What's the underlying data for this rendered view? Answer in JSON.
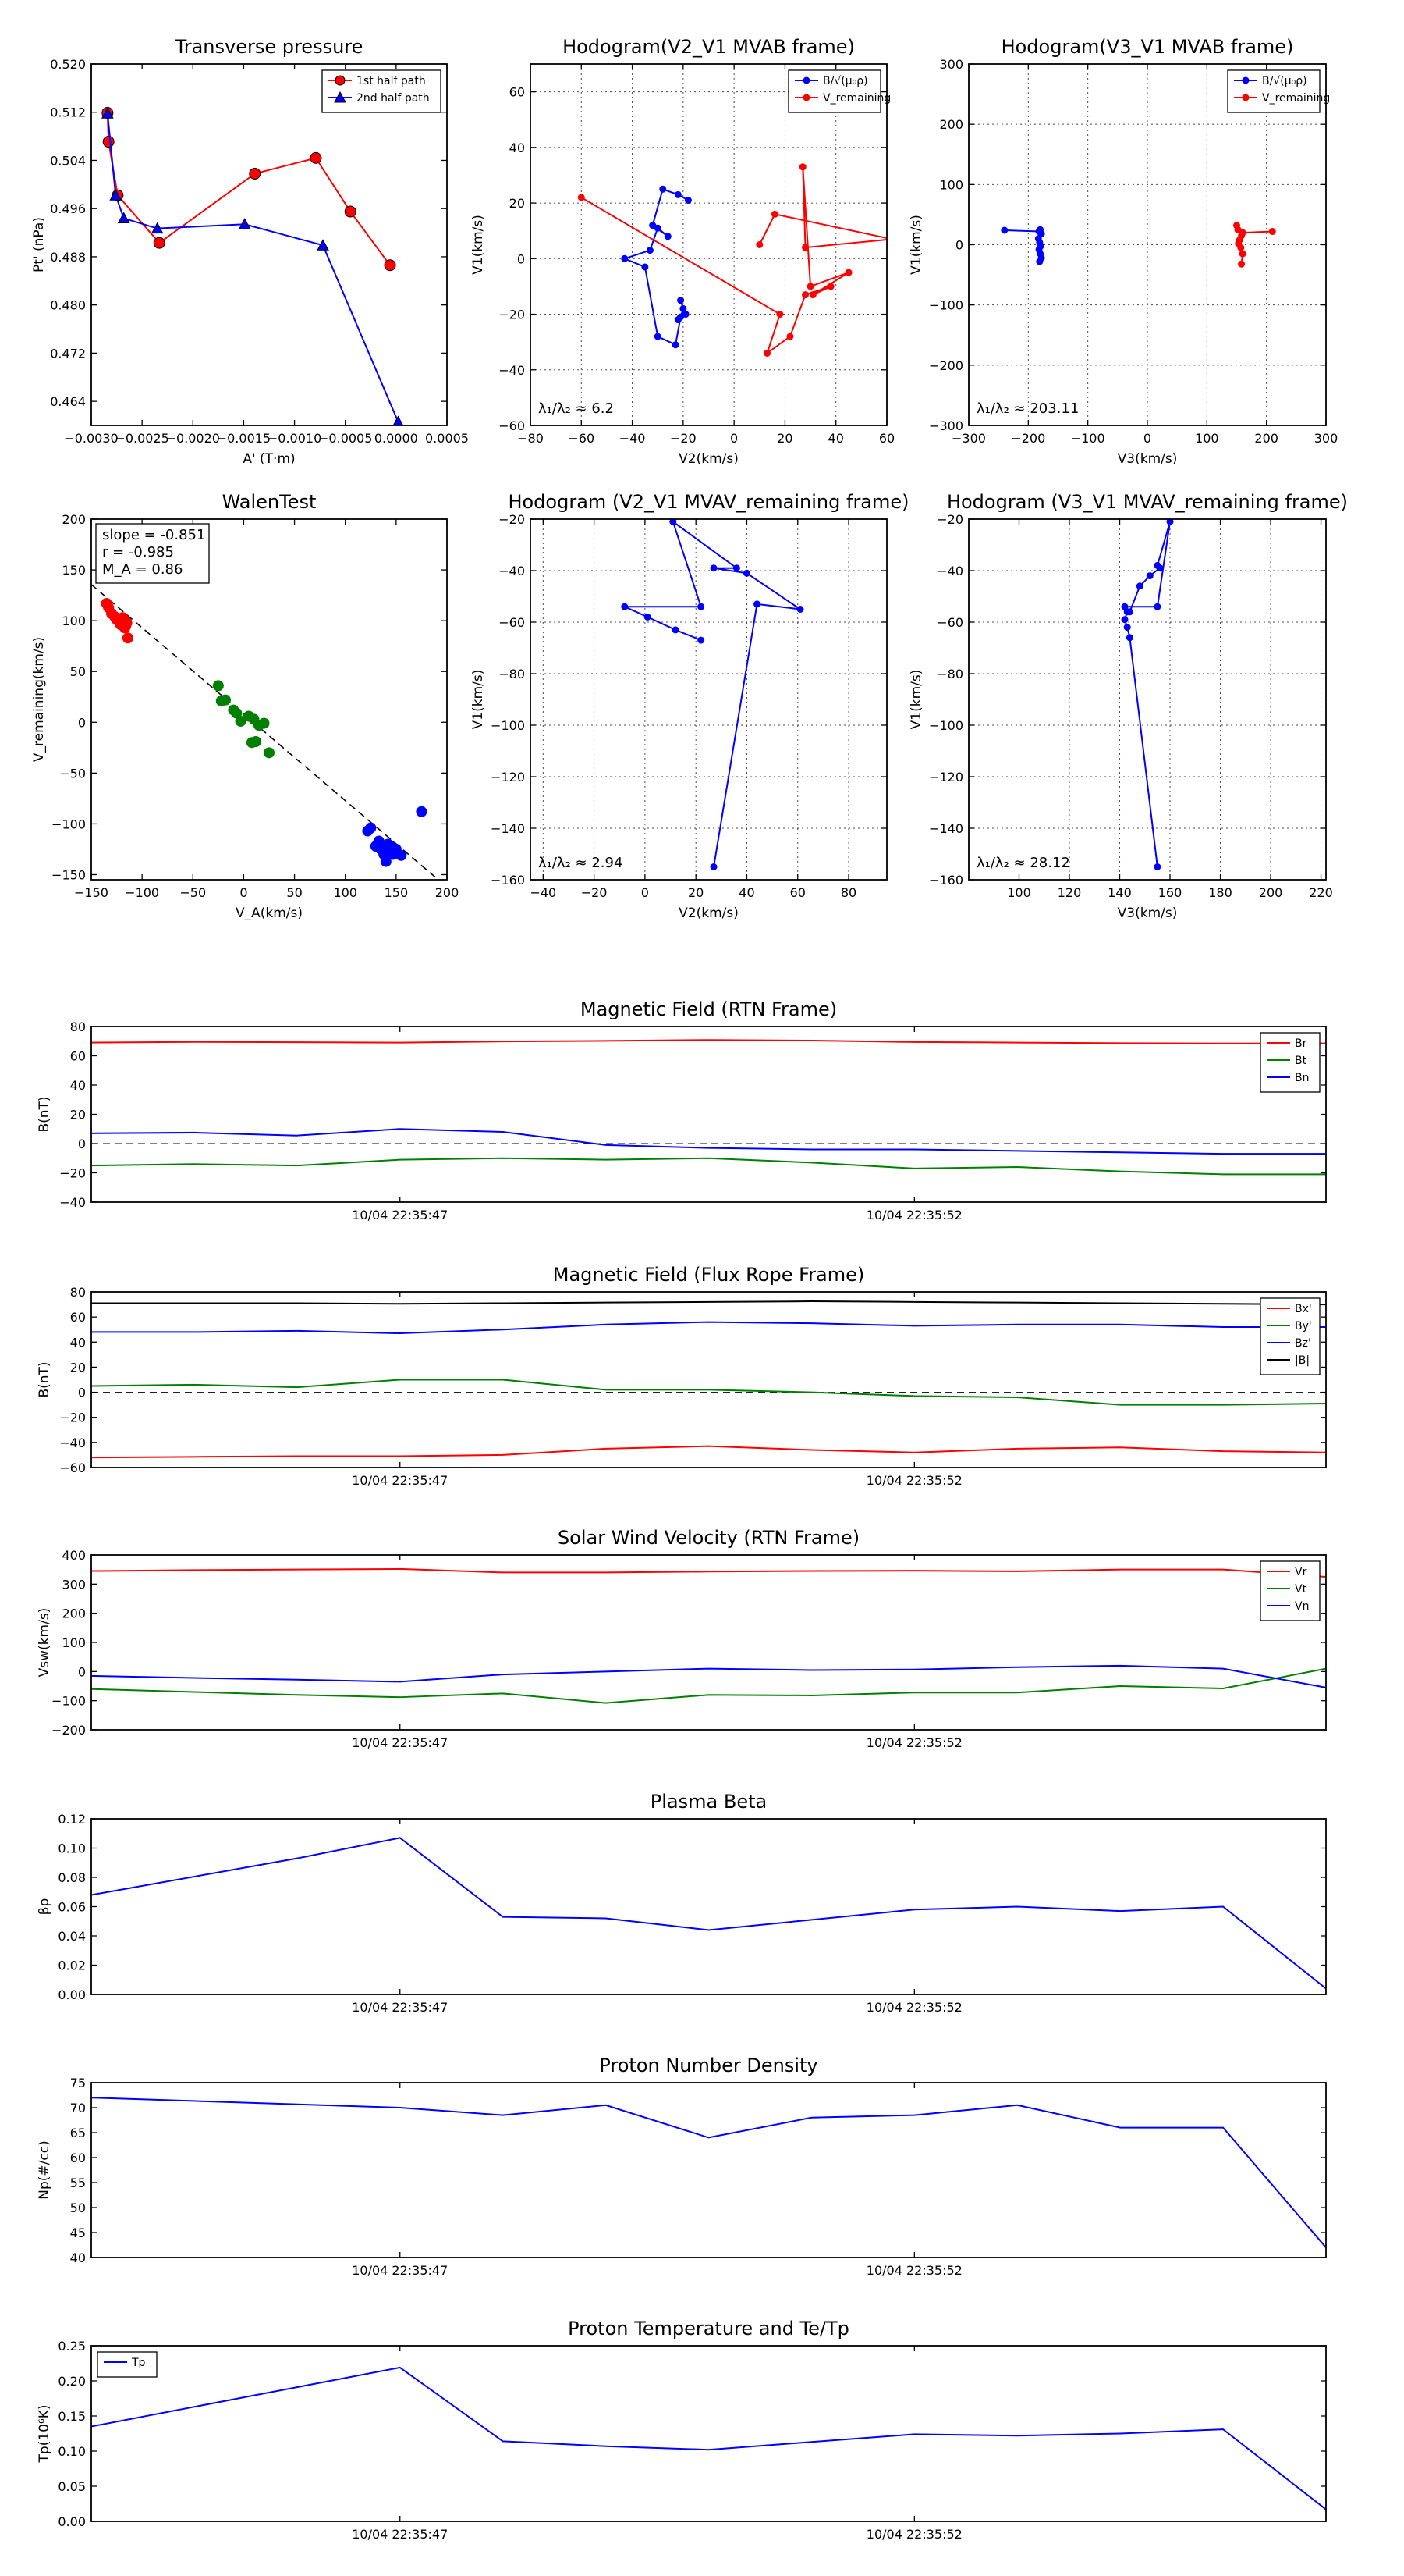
{
  "chart_data": [
    {
      "id": "transverse_pressure",
      "type": "line",
      "title": "Transverse pressure",
      "xlabel": "A' (T·m)",
      "ylabel": "Pt' (nPa)",
      "xlim": [
        -0.003,
        0.0005
      ],
      "ylim": [
        0.46,
        0.52
      ],
      "xticks": [
        -0.003,
        -0.0025,
        -0.002,
        -0.0015,
        -0.001,
        -0.0005,
        0.0,
        0.0005
      ],
      "xtick_labels": [
        "−0.0030",
        "−0.0025",
        "−0.0020",
        "−0.0015",
        "−0.0010",
        "−0.0005",
        "0.0000",
        "0.0005"
      ],
      "yticks": [
        0.464,
        0.472,
        0.48,
        0.488,
        0.496,
        0.504,
        0.512,
        0.52
      ],
      "ytick_labels": [
        "0.464",
        "0.472",
        "0.480",
        "0.488",
        "0.496",
        "0.504",
        "0.512",
        "0.520"
      ],
      "grid": false,
      "legend": "top-right",
      "series": [
        {
          "name": "1st half path",
          "color": "#ff0000",
          "marker": "circle",
          "x": [
            -0.00284,
            -0.00283,
            -0.00274,
            -0.00233,
            -0.00139,
            -0.00079,
            -0.00045,
            -6e-05
          ],
          "y": [
            0.5119,
            0.5071,
            0.4982,
            0.4903,
            0.5018,
            0.5044,
            0.4955,
            0.4866
          ]
        },
        {
          "name": "2nd half path",
          "color": "#0000ff",
          "marker": "triangle",
          "x": [
            -0.00284,
            -0.00276,
            -0.00268,
            -0.00235,
            -0.00149,
            -0.00072,
            2e-05
          ],
          "y": [
            0.5118,
            0.4982,
            0.4944,
            0.4927,
            0.4934,
            0.4899,
            0.4606
          ]
        }
      ]
    },
    {
      "id": "hodogram_v2_v1_mvab",
      "type": "line",
      "title": "Hodogram(V2_V1 MVAB frame)",
      "xlabel": "V2(km/s)",
      "ylabel": "V1(km/s)",
      "xlim": [
        -80,
        60
      ],
      "ylim": [
        -60,
        70
      ],
      "xticks": [
        -80,
        -60,
        -40,
        -20,
        0,
        20,
        40,
        60
      ],
      "yticks": [
        -60,
        -40,
        -20,
        0,
        20,
        40,
        60
      ],
      "grid": true,
      "legend": "top-right",
      "annotation": "λ₁/λ₂ ≈ 6.2",
      "series": [
        {
          "name": "B/√(μ₀ρ)",
          "color": "#0000ff",
          "marker": "circle",
          "x": [
            -18,
            -22,
            -28,
            -32,
            -26,
            -30,
            -33,
            -43,
            -35,
            -30,
            -23,
            -21,
            -20,
            -21,
            -19,
            -22
          ],
          "y": [
            21,
            23,
            25,
            12,
            8,
            11,
            3,
            0,
            -3,
            -28,
            -31,
            -21,
            -18,
            -15,
            -20,
            -22
          ]
        },
        {
          "name": "V_remaining",
          "color": "#ff0000",
          "marker": "circle",
          "x": [
            -60,
            18,
            13,
            22,
            28,
            38,
            31,
            45,
            30,
            27,
            28,
            62,
            16,
            10
          ],
          "y": [
            22,
            -20,
            -34,
            -28,
            -13,
            -10,
            -13,
            -5,
            -10,
            33,
            4,
            7,
            16,
            5
          ]
        }
      ]
    },
    {
      "id": "hodogram_v3_v1_mvab",
      "type": "line",
      "title": "Hodogram(V3_V1 MVAB frame)",
      "xlabel": "V3(km/s)",
      "ylabel": "V1(km/s)",
      "xlim": [
        -300,
        300
      ],
      "ylim": [
        -300,
        300
      ],
      "xticks": [
        -300,
        -200,
        -100,
        0,
        100,
        200,
        300
      ],
      "yticks": [
        -300,
        -200,
        -100,
        0,
        100,
        200,
        300
      ],
      "grid": true,
      "legend": "top-right",
      "annotation": "λ₁/λ₂ ≈ 203.11",
      "series": [
        {
          "name": "B/√(μ₀ρ)",
          "color": "#0000ff",
          "marker": "circle",
          "x": [
            -240,
            -182,
            -180,
            -178,
            -183,
            -181,
            -179,
            -182,
            -180,
            -178,
            -181
          ],
          "y": [
            24,
            22,
            25,
            18,
            10,
            4,
            -2,
            -8,
            -15,
            -22,
            -28
          ]
        },
        {
          "name": "V_remaining",
          "color": "#ff0000",
          "marker": "circle",
          "x": [
            210,
            160,
            150,
            152,
            158,
            155,
            153,
            157,
            160,
            158
          ],
          "y": [
            22,
            20,
            32,
            25,
            15,
            8,
            2,
            -5,
            -15,
            -32
          ]
        }
      ]
    },
    {
      "id": "walen_test",
      "type": "scatter",
      "title": "WalenTest",
      "xlabel": "V_A(km/s)",
      "ylabel": "V_remaining(km/s)",
      "xlim": [
        -150,
        200
      ],
      "ylim": [
        -155,
        200
      ],
      "xticks": [
        -150,
        -100,
        -50,
        0,
        50,
        100,
        150,
        200
      ],
      "yticks": [
        -150,
        -100,
        -50,
        0,
        50,
        100,
        150,
        200
      ],
      "grid": false,
      "annotation_lines": [
        "slope = -0.851",
        "r = -0.985",
        "M_A = 0.86"
      ],
      "fit_line": {
        "slope": -0.851,
        "intercept": 8
      },
      "series": [
        {
          "name": "red",
          "color": "#ff0000",
          "x": [
            -135,
            -133,
            -130,
            -127,
            -125,
            -122,
            -121,
            -119,
            -118,
            -117,
            -116,
            -115,
            -114
          ],
          "y": [
            117,
            113,
            107,
            104,
            101,
            98,
            96,
            103,
            100,
            93,
            95,
            98,
            83
          ]
        },
        {
          "name": "green",
          "color": "#008000",
          "x": [
            -25,
            -22,
            -18,
            -10,
            -7,
            -3,
            5,
            8,
            10,
            12,
            15,
            20,
            25
          ],
          "y": [
            36,
            21,
            22,
            12,
            9,
            1,
            6,
            -20,
            3,
            -19,
            -3,
            -1,
            -30
          ]
        },
        {
          "name": "blue",
          "color": "#0000ff",
          "x": [
            122,
            125,
            130,
            133,
            135,
            138,
            140,
            142,
            143,
            145,
            147,
            150,
            155,
            175
          ],
          "y": [
            -107,
            -104,
            -122,
            -117,
            -125,
            -130,
            -137,
            -120,
            -127,
            -122,
            -130,
            -125,
            -131,
            -88
          ]
        }
      ]
    },
    {
      "id": "hodogram_v2_v1_mvav",
      "type": "line",
      "title": "Hodogram (V2_V1 MVAV_remaining frame)",
      "xlabel": "V2(km/s)",
      "ylabel": "V1(km/s)",
      "xlim": [
        -45,
        95
      ],
      "ylim": [
        -160,
        -20
      ],
      "xticks": [
        -40,
        -20,
        0,
        20,
        40,
        60,
        80
      ],
      "yticks": [
        -160,
        -140,
        -120,
        -100,
        -80,
        -60,
        -40,
        -20
      ],
      "grid": true,
      "annotation": "λ₁/λ₂ ≈ 2.94",
      "series": [
        {
          "name": "",
          "color": "#0000ff",
          "marker": "circle",
          "x": [
            22,
            12,
            1,
            -8,
            22,
            11,
            36,
            27,
            40,
            61,
            44,
            27
          ],
          "y": [
            -67,
            -63,
            -58,
            -54,
            -54,
            -21,
            -39,
            -39,
            -41,
            -55,
            -53,
            -155
          ]
        }
      ]
    },
    {
      "id": "hodogram_v3_v1_mvav",
      "type": "line",
      "title": "Hodogram (V3_V1 MVAV_remaining frame)",
      "xlabel": "V3(km/s)",
      "ylabel": "V1(km/s)",
      "xlim": [
        80,
        222
      ],
      "ylim": [
        -160,
        -20
      ],
      "xticks": [
        100,
        120,
        140,
        160,
        180,
        200,
        220
      ],
      "yticks": [
        -160,
        -140,
        -120,
        -100,
        -80,
        -60,
        -40,
        -20
      ],
      "grid": true,
      "annotation": "λ₁/λ₂ ≈ 28.12",
      "series": [
        {
          "name": "",
          "color": "#0000ff",
          "marker": "circle",
          "x": [
            155,
            144,
            143,
            142,
            143,
            142,
            155,
            160,
            155,
            156,
            152,
            148,
            144
          ],
          "y": [
            -155,
            -66,
            -62,
            -59,
            -56,
            -54,
            -54,
            -21,
            -38,
            -39,
            -42,
            -46,
            -56
          ]
        }
      ]
    },
    {
      "id": "magnetic_field_rtn",
      "type": "line",
      "title": "Magnetic Field (RTN Frame)",
      "ylabel": "B(nT)",
      "xlim": [
        0,
        12
      ],
      "ylim": [
        -40,
        80
      ],
      "yticks": [
        -40,
        -20,
        0,
        20,
        40,
        60,
        80
      ],
      "xticks": [
        3,
        8
      ],
      "xtick_labels": [
        "10/04 22:35:47",
        "10/04 22:35:52"
      ],
      "zero_line": true,
      "legend": "top-right",
      "x": [
        0,
        1,
        2,
        3,
        4,
        5,
        6,
        7,
        8,
        9,
        10,
        11,
        12
      ],
      "series": [
        {
          "name": "Br",
          "color": "#ff0000",
          "values": [
            69,
            69.5,
            69.3,
            69,
            69.8,
            70.2,
            70.8,
            70.4,
            69.4,
            69,
            68.6,
            68.4,
            68.5
          ]
        },
        {
          "name": "Bt",
          "color": "#008000",
          "values": [
            -15,
            -14,
            -15,
            -11,
            -10,
            -11,
            -10,
            -13,
            -17,
            -16,
            -19,
            -21,
            -21
          ]
        },
        {
          "name": "Bn",
          "color": "#0000ff",
          "values": [
            7,
            7.5,
            5.5,
            10,
            8,
            -1,
            -3,
            -4,
            -4,
            -5,
            -6,
            -7,
            -7
          ]
        }
      ]
    },
    {
      "id": "magnetic_field_flux_rope",
      "type": "line",
      "title": "Magnetic Field (Flux Rope Frame)",
      "ylabel": "B(nT)",
      "xlim": [
        0,
        12
      ],
      "ylim": [
        -60,
        80
      ],
      "yticks": [
        -60,
        -40,
        -20,
        0,
        20,
        40,
        60,
        80
      ],
      "xticks": [
        3,
        8
      ],
      "xtick_labels": [
        "10/04 22:35:47",
        "10/04 22:35:52"
      ],
      "zero_line": true,
      "legend": "top-right",
      "x": [
        0,
        1,
        2,
        3,
        4,
        5,
        6,
        7,
        8,
        9,
        10,
        11,
        12
      ],
      "series": [
        {
          "name": "Bx'",
          "color": "#ff0000",
          "values": [
            -52,
            -51.5,
            -51,
            -51,
            -50,
            -45,
            -43,
            -46,
            -48,
            -45,
            -44,
            -47,
            -48
          ]
        },
        {
          "name": "By'",
          "color": "#008000",
          "values": [
            5,
            6,
            4,
            10,
            10,
            2,
            2,
            0,
            -3,
            -4,
            -10,
            -10,
            -9
          ]
        },
        {
          "name": "Bz'",
          "color": "#0000ff",
          "values": [
            48,
            48,
            49,
            47,
            50,
            54,
            56,
            55,
            53,
            54,
            54,
            52,
            52
          ]
        },
        {
          "name": "|B|",
          "color": "#000000",
          "values": [
            71,
            71,
            71,
            70.5,
            71,
            71.5,
            72,
            72.5,
            72,
            71.5,
            71,
            70.5,
            70
          ]
        }
      ]
    },
    {
      "id": "solar_wind_velocity",
      "type": "line",
      "title": "Solar Wind Velocity (RTN Frame)",
      "ylabel": "Vsw(km/s)",
      "xlim": [
        0,
        12
      ],
      "ylim": [
        -200,
        400
      ],
      "yticks": [
        -200,
        -100,
        0,
        100,
        200,
        300,
        400
      ],
      "xticks": [
        3,
        8
      ],
      "xtick_labels": [
        "10/04 22:35:47",
        "10/04 22:35:52"
      ],
      "legend": "top-right",
      "x": [
        0,
        1,
        2,
        3,
        4,
        5,
        6,
        7,
        8,
        9,
        10,
        11,
        12
      ],
      "series": [
        {
          "name": "Vr",
          "color": "#ff0000",
          "values": [
            345,
            348,
            350,
            352,
            340,
            340,
            343,
            345,
            346,
            344,
            350,
            350,
            325
          ]
        },
        {
          "name": "Vt",
          "color": "#008000",
          "values": [
            -60,
            -70,
            -80,
            -88,
            -75,
            -108,
            -80,
            -82,
            -72,
            -72,
            -50,
            -58,
            10
          ]
        },
        {
          "name": "Vn",
          "color": "#0000ff",
          "values": [
            -15,
            -22,
            -28,
            -35,
            -10,
            0,
            10,
            5,
            7,
            15,
            20,
            10,
            -55
          ]
        }
      ]
    },
    {
      "id": "plasma_beta",
      "type": "line",
      "title": "Plasma Beta",
      "ylabel": "βp",
      "xlim": [
        0,
        12
      ],
      "ylim": [
        0,
        0.12
      ],
      "yticks": [
        0,
        0.02,
        0.04,
        0.06,
        0.08,
        0.1,
        0.12
      ],
      "ytick_labels": [
        "0.00",
        "0.02",
        "0.04",
        "0.06",
        "0.08",
        "0.10",
        "0.12"
      ],
      "xticks": [
        3,
        8
      ],
      "xtick_labels": [
        "10/04 22:35:47",
        "10/04 22:35:52"
      ],
      "x": [
        0,
        2,
        3,
        4,
        5,
        6,
        7,
        8,
        9,
        10,
        11,
        12
      ],
      "series": [
        {
          "name": "beta",
          "color": "#0000ff",
          "values": [
            0.068,
            0.093,
            0.107,
            0.053,
            0.052,
            0.044,
            0.051,
            0.058,
            0.06,
            0.057,
            0.06,
            0.004
          ]
        }
      ]
    },
    {
      "id": "proton_density",
      "type": "line",
      "title": "Proton Number Density",
      "ylabel": "Np(#/cc)",
      "xlim": [
        0,
        12
      ],
      "ylim": [
        40,
        75
      ],
      "yticks": [
        40,
        45,
        50,
        55,
        60,
        65,
        70,
        75
      ],
      "xticks": [
        3,
        8
      ],
      "xtick_labels": [
        "10/04 22:35:47",
        "10/04 22:35:52"
      ],
      "x": [
        0,
        3,
        4,
        5,
        6,
        7,
        8,
        9,
        10,
        11,
        12
      ],
      "series": [
        {
          "name": "Np",
          "color": "#0000ff",
          "values": [
            72,
            70,
            68.5,
            70.5,
            64,
            68,
            68.5,
            70.5,
            66,
            66,
            42
          ]
        }
      ]
    },
    {
      "id": "proton_temperature",
      "type": "line",
      "title": "Proton Temperature and Te/Tp",
      "ylabel": "Tp(10⁶K)",
      "xlim": [
        0,
        12
      ],
      "ylim": [
        0,
        0.25
      ],
      "yticks": [
        0,
        0.05,
        0.1,
        0.15,
        0.2,
        0.25
      ],
      "ytick_labels": [
        "0.00",
        "0.05",
        "0.10",
        "0.15",
        "0.20",
        "0.25"
      ],
      "xticks": [
        3,
        8
      ],
      "xtick_labels": [
        "10/04 22:35:47",
        "10/04 22:35:52"
      ],
      "legend": "top-left",
      "x": [
        0,
        3,
        4,
        5,
        6,
        7,
        8,
        9,
        10,
        11,
        12
      ],
      "series": [
        {
          "name": "Tp",
          "color": "#0000ff",
          "values": [
            0.135,
            0.219,
            0.114,
            0.107,
            0.102,
            0.113,
            0.124,
            0.122,
            0.125,
            0.131,
            0.017
          ]
        }
      ]
    }
  ]
}
